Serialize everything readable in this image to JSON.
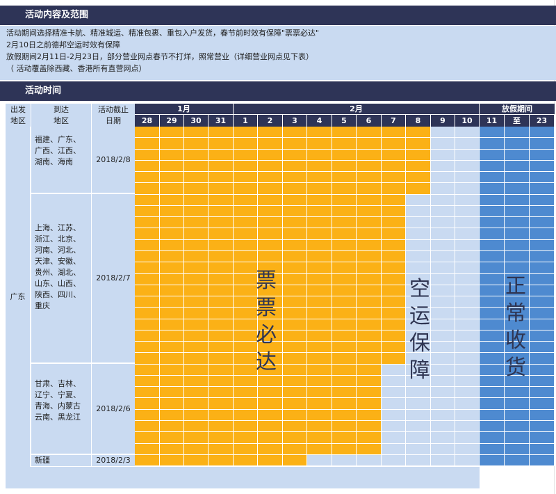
{
  "section1": {
    "title": "活动内容及范围",
    "lines": [
      "活动期间选择精准卡航、精准城运、精准包裹、重包入户发货，春节前时效有保障\"票票必达\"",
      "2月10日之前德邦空运时效有保障",
      "放假期间2月11日-2月23日，部分营业网点春节不打烊，照常营业（详细营业网点见下表）",
      "（ 活动覆盖除西藏、香港所有直营网点）"
    ]
  },
  "section2": {
    "title": "活动时间"
  },
  "table": {
    "col_origin": "出发\n地区",
    "col_dest": "到达\n地区",
    "col_deadline": "活动截止\n日期",
    "month1": "1月",
    "month2": "2月",
    "holiday": "放假期间",
    "days": [
      "28",
      "29",
      "30",
      "31",
      "1",
      "2",
      "3",
      "4",
      "5",
      "6",
      "7",
      "8",
      "9",
      "10",
      "11",
      "至",
      "23"
    ],
    "origin": "广东",
    "groups": [
      {
        "dest": [
          "福建、广东、",
          "广西、江西、",
          "湖南、海南"
        ],
        "deadline": "2018/2/8"
      },
      {
        "dest": [
          "上海、江苏、",
          "浙江、北京、",
          "河南、河北、",
          "天津、安徽、",
          "贵州、湖北、",
          "山东、山西、",
          "陕西、四川、",
          "重庆"
        ],
        "deadline": "2018/2/7"
      },
      {
        "dest": [
          "甘肃、吉林、",
          "辽宁、宁夏、",
          "青海、内蒙古",
          "云南、黑龙江"
        ],
        "deadline": "2018/2/6"
      },
      {
        "dest": [
          "新疆"
        ],
        "deadline": "2018/2/3"
      }
    ],
    "band_label_1": [
      "票",
      "票",
      "必",
      "达"
    ],
    "band_label_2": [
      "空",
      "运",
      "保",
      "障"
    ],
    "band_label_3": [
      "正",
      "常",
      "收",
      "货"
    ]
  },
  "colors": {
    "orange": "#fbb116",
    "light": "#c9daf1",
    "blue": "#4e8ad0",
    "navy": "#2e3457"
  }
}
